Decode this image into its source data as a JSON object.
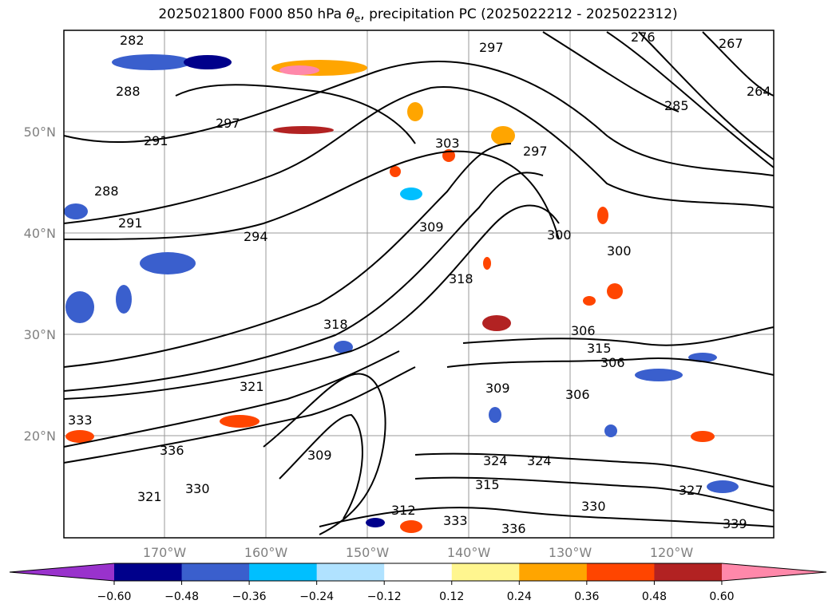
{
  "title": {
    "prefix": "2025021800 F000 850 hPa ",
    "theta": "θ",
    "sub": "e",
    "suffix": ", precipitation PC (2025022212 - 2025022312)"
  },
  "map": {
    "lat_labels": [
      "50°N",
      "40°N",
      "30°N",
      "20°N"
    ],
    "lon_labels": [
      "170°W",
      "160°W",
      "150°W",
      "140°W",
      "130°W",
      "120°W"
    ],
    "contour_labels": [
      "282",
      "276",
      "267",
      "264",
      "285",
      "288",
      "297",
      "291",
      "288",
      "291",
      "294",
      "297",
      "300",
      "303",
      "297",
      "300",
      "309",
      "318",
      "318",
      "306",
      "315",
      "306",
      "309",
      "306",
      "321",
      "324",
      "333",
      "336",
      "330",
      "321",
      "315",
      "324",
      "327",
      "330",
      "336",
      "339",
      "309",
      "312",
      "333"
    ]
  },
  "colorbar": {
    "colors": [
      "#9932cc",
      "#00008b",
      "#3a5fcd",
      "#00bfff",
      "#b0e2ff",
      "#ffffff",
      "#fff68f",
      "#ffa500",
      "#ff4500",
      "#b22222",
      "#ff88aa"
    ],
    "ticks": [
      "−0.60",
      "−0.48",
      "−0.36",
      "−0.24",
      "−0.12",
      "0.12",
      "0.24",
      "0.36",
      "0.48",
      "0.60"
    ]
  }
}
